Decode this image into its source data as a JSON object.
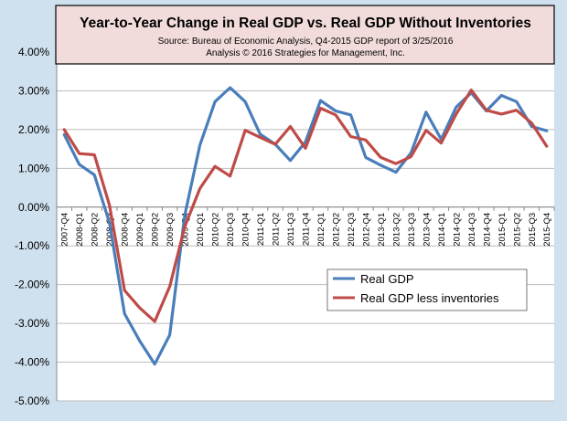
{
  "colors": {
    "background": "#cfe0ee",
    "plot_area": "#ffffff",
    "gridline": "#bcbcbc",
    "title_box_fill": "#f2dcdb",
    "title_box_border": "#000000",
    "series_real_gdp": "#4a7ebb",
    "series_less_inventories": "#be4b48"
  },
  "chart_data": {
    "type": "line",
    "title": "Year-to-Year Change in Real GDP vs. Real GDP Without Inventories",
    "subtitle_lines": [
      "Source: Bureau of Economic Analysis, Q4-2015 GDP report of 3/25/2016",
      "Analysis © 2016 Strategies for Management, Inc."
    ],
    "xlabel": "",
    "ylabel": "",
    "ylim": [
      -5.0,
      4.0
    ],
    "y_ticks": [
      4.0,
      3.0,
      2.0,
      1.0,
      0.0,
      -1.0,
      -2.0,
      -3.0,
      -4.0,
      -5.0
    ],
    "y_tick_labels": [
      "4.00%",
      "3.00%",
      "2.00%",
      "1.00%",
      "0.00%",
      "-1.00%",
      "-2.00%",
      "-3.00%",
      "-4.00%",
      "-5.00%"
    ],
    "grid": true,
    "legend_position": "lower-right",
    "categories": [
      "2007-Q4",
      "2008-Q1",
      "2008-Q2",
      "2008-Q3",
      "2008-Q4",
      "2009-Q1",
      "2009-Q2",
      "2009-Q3",
      "2009-Q4",
      "2010-Q1",
      "2010-Q2",
      "2010-Q3",
      "2010-Q4",
      "2011-Q1",
      "2011-Q2",
      "2011-Q3",
      "2011-Q4",
      "2012-Q1",
      "2012-Q2",
      "2012-Q3",
      "2012-Q4",
      "2013-Q1",
      "2013-Q2",
      "2013-Q3",
      "2013-Q4",
      "2014-Q1",
      "2014-Q2",
      "2014-Q3",
      "2014-Q4",
      "2015-Q1",
      "2015-Q2",
      "2015-Q3",
      "2015-Q4"
    ],
    "series": [
      {
        "name": "Real GDP",
        "values": [
          1.87,
          1.1,
          0.83,
          -0.4,
          -2.75,
          -3.45,
          -4.05,
          -3.3,
          -0.2,
          1.6,
          2.72,
          3.08,
          2.72,
          1.88,
          1.62,
          1.2,
          1.68,
          2.75,
          2.48,
          2.38,
          1.28,
          1.08,
          0.9,
          1.4,
          2.45,
          1.75,
          2.58,
          2.95,
          2.48,
          2.88,
          2.72,
          2.08,
          1.97
        ]
      },
      {
        "name": "Real GDP less inventories",
        "values": [
          2.0,
          1.38,
          1.35,
          0.05,
          -2.15,
          -2.6,
          -2.95,
          -2.05,
          -0.5,
          0.48,
          1.05,
          0.8,
          1.98,
          1.8,
          1.62,
          2.08,
          1.52,
          2.55,
          2.38,
          1.82,
          1.73,
          1.28,
          1.12,
          1.3,
          1.98,
          1.65,
          2.4,
          3.02,
          2.5,
          2.4,
          2.5,
          2.17,
          1.57
        ]
      }
    ]
  }
}
